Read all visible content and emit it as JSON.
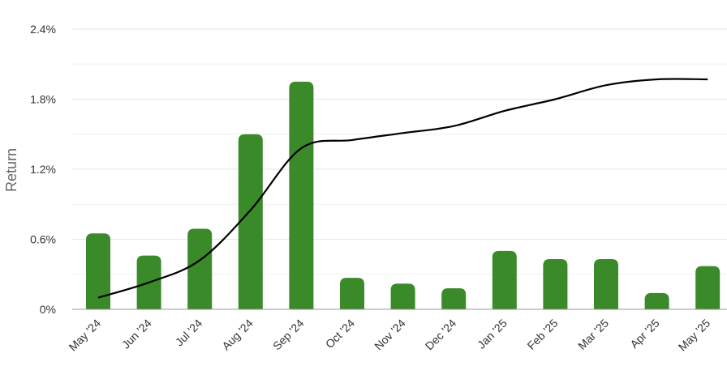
{
  "chart_data": {
    "type": "bar",
    "ylabel": "Return",
    "xlabel": "",
    "title": "",
    "ylim": [
      0,
      2.4
    ],
    "y_ticks": [
      0,
      0.6,
      1.2,
      1.8,
      2.4
    ],
    "y_tick_labels": [
      "0%",
      "0.6%",
      "1.2%",
      "1.8%",
      "2.4%"
    ],
    "grid": true,
    "categories": [
      "May '24",
      "Jun '24",
      "Jul '24",
      "Aug '24",
      "Sep '24",
      "Oct '24",
      "Nov '24",
      "Dec '24",
      "Jan '25",
      "Feb '25",
      "Mar '25",
      "Apr '25",
      "May '25"
    ],
    "series": [
      {
        "type": "bar",
        "color": "#3a8a2a",
        "values": [
          0.65,
          0.46,
          0.69,
          1.5,
          1.95,
          0.27,
          0.22,
          0.18,
          0.5,
          0.43,
          0.43,
          0.14,
          0.37
        ]
      },
      {
        "type": "line",
        "color": "#000000",
        "values": [
          0.1,
          0.23,
          0.42,
          0.85,
          1.38,
          1.45,
          1.51,
          1.57,
          1.7,
          1.8,
          1.92,
          1.97,
          1.97
        ]
      }
    ]
  }
}
